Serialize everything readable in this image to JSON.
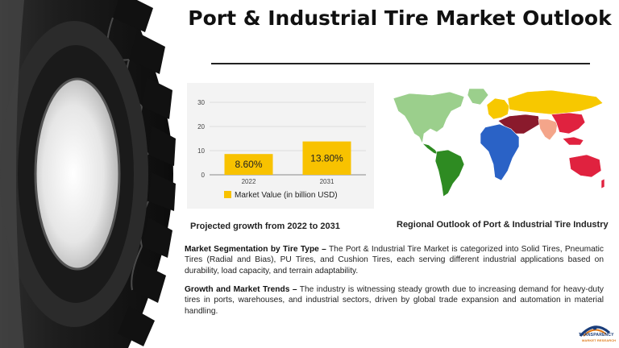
{
  "title": "Port & Industrial Tire Market Outlook",
  "chart_caption": "Projected growth from 2022 to 2031",
  "map_caption": "Regional Outlook of Port & Industrial Tire Industry",
  "chart_data": {
    "type": "bar",
    "categories": [
      "2022",
      "2031"
    ],
    "series": [
      {
        "name": "Market Value (in billion USD)",
        "values": [
          8.6,
          13.8
        ],
        "labels": [
          "8.60%",
          "13.80%"
        ]
      }
    ],
    "yticks": [
      "0",
      "10",
      "20",
      "30"
    ],
    "ylim": [
      0,
      30
    ],
    "legend_label": "Market Value (in billion USD)",
    "legend_position": "bottom",
    "bar_color": "#f8c200",
    "grid": true
  },
  "paragraphs": [
    {
      "heading": "Market Segmentation by Tire Type –",
      "text": " The Port & Industrial Tire Market is categorized into Solid Tires, Pneumatic Tires (Radial and Bias), PU Tires, and Cushion Tires, each serving different industrial applications based on durability, load capacity, and terrain adaptability."
    },
    {
      "heading": "Growth and Market Trends –",
      "text": " The industry is witnessing steady growth due to increasing demand for heavy-duty tires in ports, warehouses, and industrial sectors, driven by global trade expansion and automation in material handling."
    }
  ],
  "logo": {
    "line1": "TRANSPARENCY",
    "line2": "MARKET RESEARCH"
  },
  "map_colors": {
    "north_america": "#9bcf8c",
    "south_america": "#2e8b22",
    "europe": "#f7c800",
    "russia_asia": "#f7c800",
    "middle_east": "#8a1a2c",
    "africa": "#2a62c6",
    "south_asia": "#f4a58a",
    "east_asia": "#e0223f",
    "oceania": "#e0223f",
    "greenland": "#9bcf8c"
  }
}
